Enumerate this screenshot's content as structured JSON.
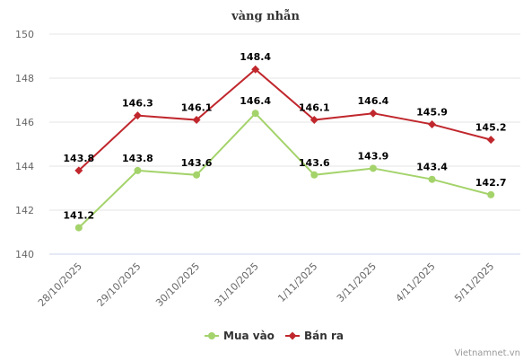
{
  "chart_data": {
    "type": "line",
    "title": "vàng nhẫn",
    "categories": [
      "28/10/2025",
      "29/10/2025",
      "30/10/2025",
      "31/10/2025",
      "1/11/2025",
      "3/11/2025",
      "4/11/2025",
      "5/11/2025"
    ],
    "series": [
      {
        "name": "Mua vào",
        "color": "#a4d36b",
        "marker": "circle",
        "values": [
          141.2,
          143.8,
          143.6,
          146.4,
          143.6,
          143.9,
          143.4,
          142.7
        ]
      },
      {
        "name": "Bán ra",
        "color": "#c0272d",
        "marker": "diamond",
        "values": [
          143.8,
          146.3,
          146.1,
          148.4,
          146.1,
          146.4,
          145.9,
          145.2
        ]
      }
    ],
    "ylim": [
      140,
      150
    ],
    "yticks": [
      "140",
      "142",
      "144",
      "146",
      "148",
      "150"
    ],
    "grid": true,
    "legend": "bottom-center",
    "data_labels": true
  },
  "credit": "Vietnamnet.vn"
}
